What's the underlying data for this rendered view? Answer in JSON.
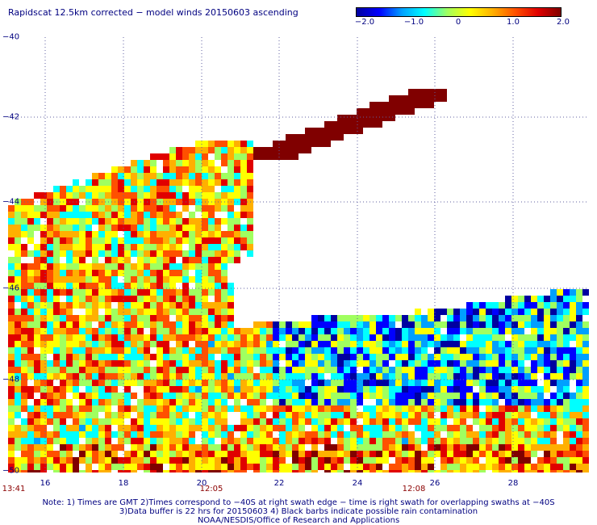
{
  "title": "Rapidscat 12.5km corrected − model winds 20150603 ascending",
  "colorbar": {
    "ticks": [
      "−2.0",
      "−1.0",
      "0",
      "1.0",
      "2.0"
    ],
    "range": [
      -2.0,
      2.0
    ],
    "colors": [
      "#0000a0",
      "#0000ff",
      "#00a0ff",
      "#00ffff",
      "#a0ff60",
      "#ffff00",
      "#ffb000",
      "#ff5000",
      "#e00000",
      "#800000"
    ]
  },
  "map": {
    "lat_labels": [
      "−40",
      "−42",
      "−44",
      "−46",
      "−48",
      "−50"
    ],
    "lon_labels": [
      "16",
      "18",
      "20",
      "22",
      "24",
      "26",
      "28"
    ],
    "lat_range": [
      -40,
      -50
    ],
    "lon_range": [
      14.2,
      29.3
    ],
    "grid": "dotted",
    "time_labels": [
      "13:41",
      "12:05",
      "12:08"
    ]
  },
  "notes": [
    "Note: 1) Times are GMT 2)Times correspond to −40S at right swath edge − time is right swath for overlapping swaths at −40S",
    "3)Data buffer is 22 hrs for 20150603 4) Black barbs indicate possible rain contamination",
    "NOAA/NESDIS/Office of Research and Applications"
  ]
}
